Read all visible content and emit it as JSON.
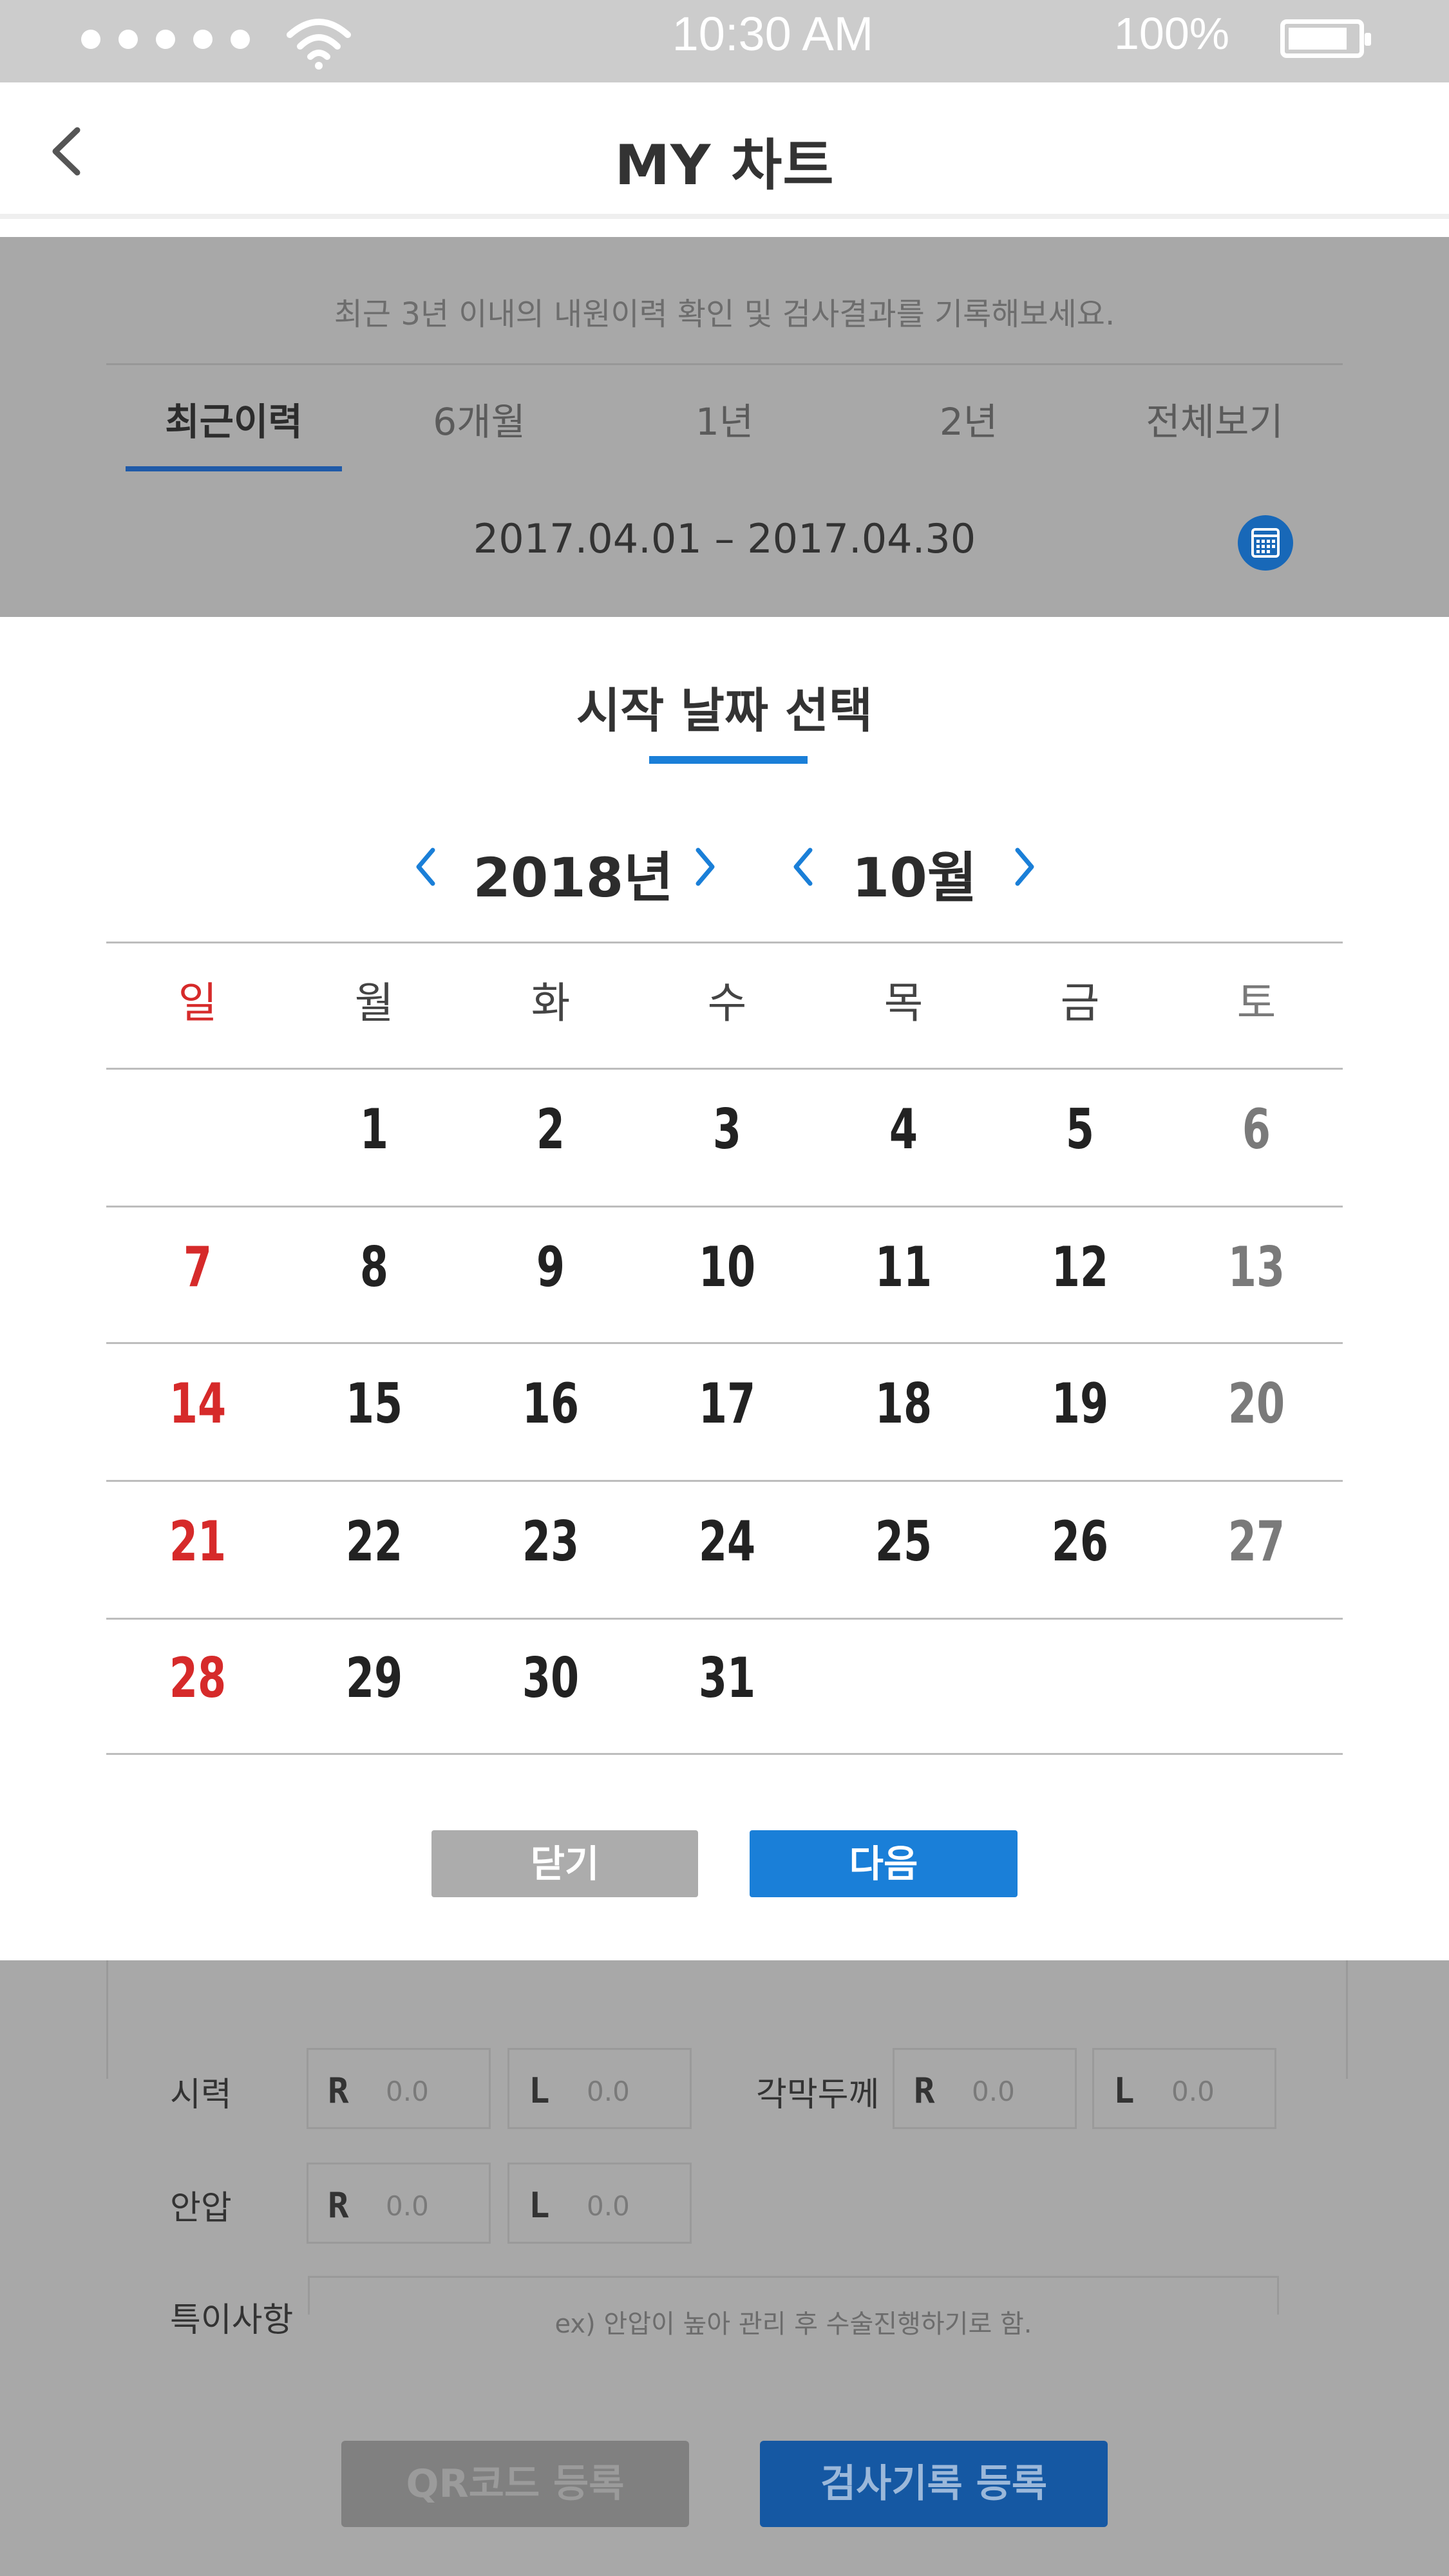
{
  "status_bar": {
    "time": "10:30 AM",
    "battery": "100%",
    "signal_icon": "signal-dots-icon",
    "wifi_icon": "wifi-icon",
    "battery_icon": "battery-icon"
  },
  "header": {
    "title": "MY 차트",
    "back_icon": "chevron-left-icon"
  },
  "history": {
    "notice": "최근 3년 이내의 내원이력 확인 및 검사결과를 기록해보세요.",
    "tabs": [
      {
        "label": "최근이력",
        "active": true
      },
      {
        "label": "6개월",
        "active": false
      },
      {
        "label": "1년",
        "active": false
      },
      {
        "label": "2년",
        "active": false
      },
      {
        "label": "전체보기",
        "active": false
      }
    ],
    "date_range": "2017.04.01 – 2017.04.30",
    "calendar_icon": "calendar-icon"
  },
  "exam_form": {
    "vision_label": "시력",
    "corneal_label": "각막두께",
    "iop_label": "안압",
    "notes_label": "특이사항",
    "right_label": "R",
    "left_label": "L",
    "value_placeholder": "0.0",
    "notes_placeholder": "ex) 안압이 높아 관리 후 수술진행하기로 함.",
    "qr_button": "QR코드 등록",
    "register_button": "검사기록 등록"
  },
  "date_picker": {
    "title": "시작 날짜 선택",
    "year": "2018년",
    "month": "10월",
    "weekdays": [
      "일",
      "월",
      "화",
      "수",
      "목",
      "금",
      "토"
    ],
    "weeks": [
      [
        "",
        "1",
        "2",
        "3",
        "4",
        "5",
        "6"
      ],
      [
        "7",
        "8",
        "9",
        "10",
        "11",
        "12",
        "13"
      ],
      [
        "14",
        "15",
        "16",
        "17",
        "18",
        "19",
        "20"
      ],
      [
        "21",
        "22",
        "23",
        "24",
        "25",
        "26",
        "27"
      ],
      [
        "28",
        "29",
        "30",
        "31",
        "",
        "",
        ""
      ]
    ],
    "close_button": "닫기",
    "next_button": "다음"
  },
  "colors": {
    "accent": "#1a7fd8",
    "sunday": "#d62a2a",
    "saturday": "#7a7a7a",
    "overlay": "#a8a8a8"
  }
}
